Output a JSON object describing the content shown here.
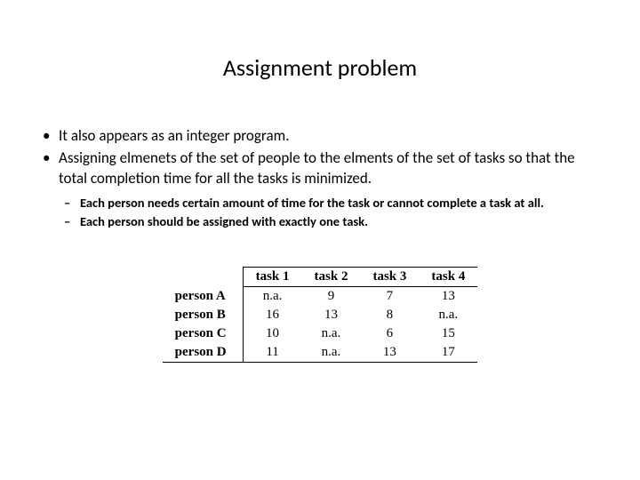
{
  "title": "Assignment problem",
  "bullets": [
    "It also appears as an integer program.",
    "Assigning elmenets of the set of people to the elments of the set of tasks so that the total completion time for all the tasks is minimized."
  ],
  "sub_bullets": [
    "Each person needs certain amount of time for the task or cannot complete a task at all.",
    "Each person should be assigned with exactly one task."
  ],
  "table": {
    "columns": [
      "task 1",
      "task 2",
      "task 3",
      "task 4"
    ],
    "row_headers": [
      "person A",
      "person B",
      "person C",
      "person D"
    ],
    "rows": [
      [
        "n.a.",
        "9",
        "7",
        "13"
      ],
      [
        "16",
        "13",
        "8",
        "n.a."
      ],
      [
        "10",
        "n.a.",
        "6",
        "15"
      ],
      [
        "11",
        "n.a.",
        "13",
        "17"
      ]
    ],
    "border_color": "#000000",
    "font_family": "Times New Roman",
    "header_fontweight": 700,
    "cell_fontsize": 15
  },
  "colors": {
    "background": "#ffffff",
    "text": "#000000"
  }
}
